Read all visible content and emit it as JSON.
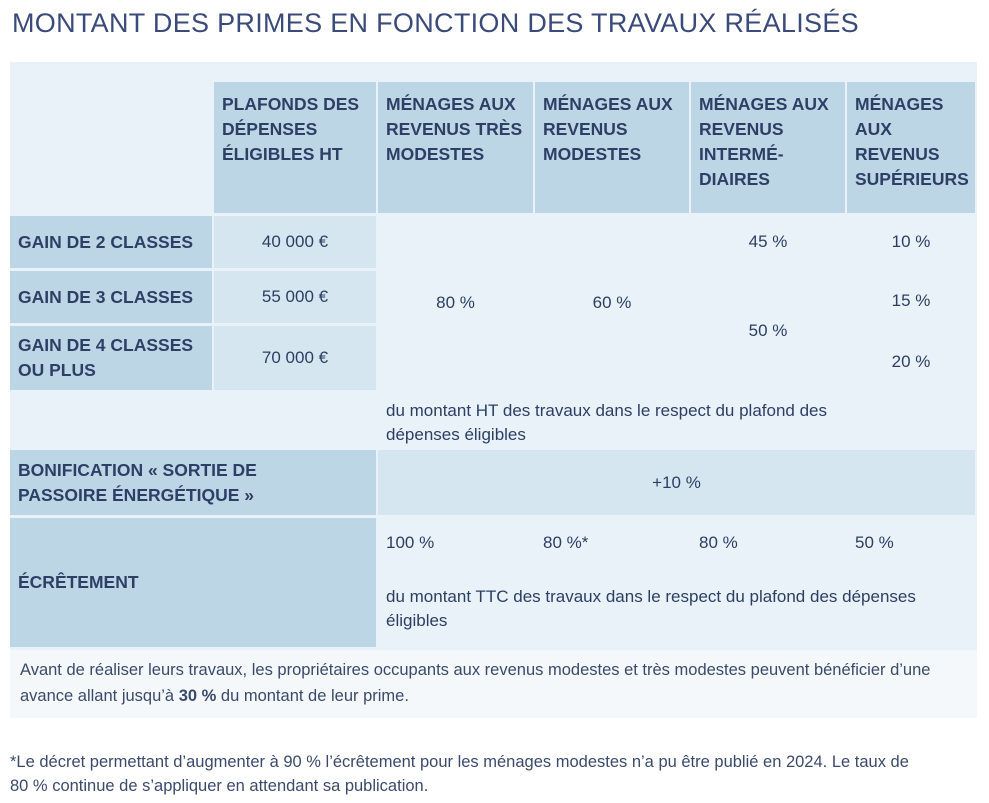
{
  "title": "MONTANT DES PRIMES EN FONCTION DES TRAVAUX RÉALISÉS",
  "headers": [
    "PLAFONDS DES DÉPENSES ÉLIGIBLES HT",
    "MÉNAGES AUX REVENUS TRÈS MODESTES",
    "MÉNAGES AUX REVENUS MODESTES",
    "MÉNAGES AUX REVENUS INTERMÉ-DIAIRES",
    "MÉNAGES AUX REVENUS SUPÉRIEURS"
  ],
  "rows": [
    {
      "label": "GAIN DE 2 CLASSES",
      "plafond": "40 000 €"
    },
    {
      "label": "GAIN DE 3 CLASSES",
      "plafond": "55 000 €"
    },
    {
      "label": "GAIN DE 4 CLASSES OU PLUS",
      "plafond": "70 000 €"
    }
  ],
  "rates": {
    "tres_modestes": "80 %",
    "modestes": "60 %",
    "inter_2": "45 %",
    "inter_3_4": "50 %",
    "sup_2": "10 %",
    "sup_3": "15 %",
    "sup_4": "20 %"
  },
  "ht_note": "du montant HT des travaux dans le respect du plafond des dépenses éligibles",
  "bonification": {
    "label": "BONIFICATION « SORTIE DE PASSOIRE ÉNERGÉTIQUE »",
    "value": "+10 %"
  },
  "ecretement": {
    "label": "ÉCRÊTEMENT",
    "values": [
      "100 %",
      "80 %*",
      "80 %",
      "50 %"
    ],
    "note": "du montant TTC des travaux dans le respect du plafond des dépenses éligibles"
  },
  "advance": {
    "before": "Avant de réaliser leurs travaux, les propriétaires occupants aux revenus modestes et très modestes peuvent bénéficier d’une avance allant jusqu’à ",
    "bold": "30 %",
    "after": " du montant de leur prime."
  },
  "footnote": "*Le décret permettant d’augmenter à 90 % l’écrêtement pour les ménages modestes n’a pu être publié en 2024. Le taux de 80 % continue de s’appliquer en attendant sa publication."
}
